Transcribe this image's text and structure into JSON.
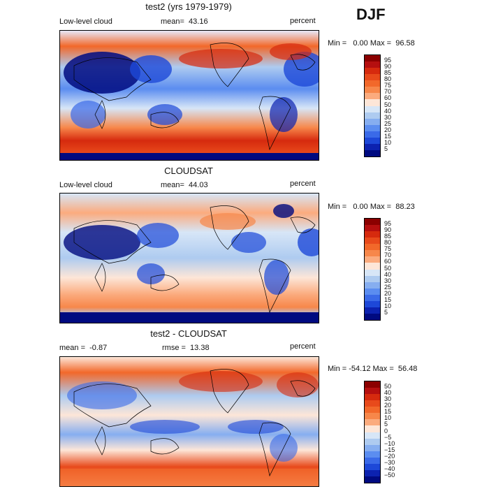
{
  "season": "DJF",
  "panels": [
    {
      "id": "model",
      "title": "test2 (yrs 1979-1979)",
      "left_label": "Low-level cloud",
      "stat1": "mean=  43.16",
      "stat2": "",
      "units": "percent",
      "minmax": "Min =   0.00 Max =  96.58",
      "levels": [
        "95",
        "90",
        "85",
        "80",
        "75",
        "70",
        "60",
        "50",
        "40",
        "30",
        "25",
        "20",
        "15",
        "10",
        "5"
      ],
      "colors": [
        "#8b0000",
        "#b50f0f",
        "#d62a0e",
        "#e84a1b",
        "#f2682a",
        "#f7874a",
        "#fbab7e",
        "#fde6d8",
        "#d7e6f7",
        "#aecbf0",
        "#86aef0",
        "#5b8df0",
        "#3a6ae8",
        "#1d48d8",
        "#0c22b0",
        "#000a80"
      ]
    },
    {
      "id": "obs",
      "title": "CLOUDSAT",
      "left_label": "Low-level cloud",
      "stat1": "mean=  44.03",
      "stat2": "",
      "units": "percent",
      "minmax": "Min =   0.00 Max =  88.23",
      "levels": [
        "95",
        "90",
        "85",
        "80",
        "75",
        "70",
        "60",
        "50",
        "40",
        "30",
        "25",
        "20",
        "15",
        "10",
        "5"
      ],
      "colors": [
        "#8b0000",
        "#b50f0f",
        "#d62a0e",
        "#e84a1b",
        "#f2682a",
        "#f7874a",
        "#fbab7e",
        "#fde6d8",
        "#d7e6f7",
        "#aecbf0",
        "#86aef0",
        "#5b8df0",
        "#3a6ae8",
        "#1d48d8",
        "#0c22b0",
        "#000a80"
      ]
    },
    {
      "id": "diff",
      "title": "test2 - CLOUDSAT",
      "left_label": "mean =  -0.87",
      "stat1": "rmse =  13.38",
      "stat2": "",
      "units": "percent",
      "minmax": "Min = -54.12 Max =  56.48",
      "levels": [
        "50",
        "40",
        "30",
        "20",
        "15",
        "10",
        "5",
        "0",
        "−5",
        "−10",
        "−15",
        "−20",
        "−30",
        "−40",
        "−50"
      ],
      "colors": [
        "#8b0000",
        "#b50f0f",
        "#d62a0e",
        "#e84a1b",
        "#f2682a",
        "#f7874a",
        "#fbab7e",
        "#fde6d8",
        "#d7e6f7",
        "#aecbf0",
        "#86aef0",
        "#5b8df0",
        "#3a6ae8",
        "#1d48d8",
        "#0c22b0",
        "#000a80"
      ]
    }
  ]
}
